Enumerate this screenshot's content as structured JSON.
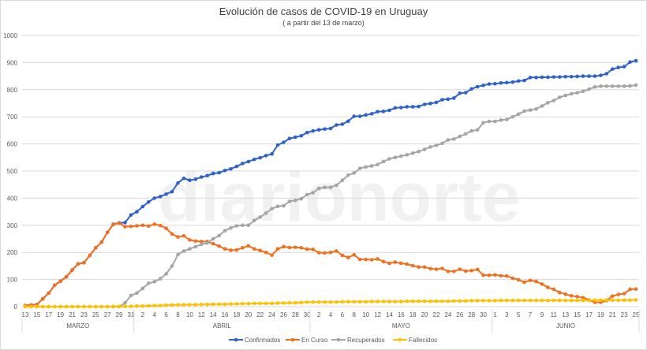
{
  "chart_data": {
    "type": "line",
    "title": "Evolución de casos de COVID-19 en Uruguay",
    "subtitle": "( a partir del 13 de marzo)",
    "watermark": "diarionorte",
    "ylim": [
      0,
      1000
    ],
    "yticks": [
      0,
      100,
      200,
      300,
      400,
      500,
      600,
      700,
      800,
      900,
      1000
    ],
    "grid": true,
    "legend_position": "bottom",
    "x_tick_labels": [
      "13",
      "15",
      "17",
      "19",
      "21",
      "23",
      "25",
      "27",
      "29",
      "31",
      "2",
      "4",
      "6",
      "8",
      "10",
      "12",
      "14",
      "16",
      "18",
      "20",
      "22",
      "24",
      "26",
      "28",
      "30",
      "2",
      "4",
      "6",
      "8",
      "10",
      "12",
      "14",
      "16",
      "18",
      "20",
      "22",
      "24",
      "26",
      "28",
      "30",
      "1",
      "3",
      "5",
      "7",
      "9",
      "11",
      "13",
      "15",
      "17",
      "19",
      "21",
      "23",
      "25"
    ],
    "months": [
      {
        "label": "MARZO",
        "days": 19
      },
      {
        "label": "ABRIL",
        "days": 30
      },
      {
        "label": "MAYO",
        "days": 31
      },
      {
        "label": "JUNIO",
        "days": 25
      }
    ],
    "series": [
      {
        "name": "Confirmados",
        "color": "#2e62c9",
        "values": [
          4,
          6,
          8,
          29,
          50,
          79,
          94,
          110,
          135,
          158,
          162,
          189,
          217,
          238,
          274,
          304,
          309,
          310,
          338,
          350,
          369,
          386,
          400,
          406,
          415,
          424,
          456,
          473,
          466,
          470,
          478,
          483,
          491,
          494,
          502,
          508,
          517,
          528,
          535,
          543,
          549,
          557,
          563,
          596,
          606,
          620,
          625,
          630,
          642,
          648,
          652,
          655,
          657,
          670,
          673,
          684,
          702,
          702,
          707,
          711,
          719,
          720,
          724,
          733,
          734,
          737,
          737,
          738,
          746,
          749,
          753,
          763,
          765,
          769,
          787,
          789,
          803,
          811,
          816,
          821,
          822,
          825,
          826,
          828,
          832,
          834,
          845,
          845,
          846,
          846,
          847,
          847,
          848,
          848,
          849,
          850,
          850,
          850,
          853,
          859,
          876,
          882,
          885,
          902,
          907
        ]
      },
      {
        "name": "En Curso",
        "color": "#f07020",
        "values": [
          4,
          6,
          8,
          29,
          50,
          79,
          94,
          110,
          135,
          158,
          162,
          189,
          217,
          238,
          274,
          303,
          308,
          295,
          296,
          298,
          300,
          297,
          304,
          299,
          289,
          268,
          257,
          261,
          246,
          242,
          240,
          240,
          232,
          223,
          213,
          208,
          209,
          217,
          224,
          213,
          207,
          200,
          190,
          213,
          221,
          218,
          219,
          217,
          212,
          211,
          199,
          198,
          200,
          205,
          189,
          181,
          191,
          174,
          174,
          173,
          176,
          166,
          160,
          164,
          160,
          157,
          151,
          146,
          146,
          140,
          138,
          141,
          130,
          130,
          138,
          131,
          133,
          137,
          116,
          116,
          117,
          114,
          113,
          105,
          99,
          90,
          97,
          93,
          83,
          71,
          64,
          52,
          46,
          40,
          37,
          33,
          25,
          16,
          16,
          22,
          39,
          45,
          48,
          64,
          65
        ]
      },
      {
        "name": "Recuperados",
        "color": "#a5a5a5",
        "values": [
          0,
          0,
          0,
          0,
          0,
          0,
          0,
          0,
          0,
          0,
          0,
          0,
          0,
          0,
          0,
          0,
          0,
          14,
          41,
          50,
          67,
          86,
          92,
          103,
          121,
          150,
          192,
          205,
          213,
          221,
          230,
          235,
          250,
          262,
          280,
          290,
          298,
          300,
          300,
          318,
          330,
          345,
          361,
          370,
          372,
          388,
          392,
          398,
          413,
          420,
          436,
          440,
          440,
          448,
          466,
          485,
          493,
          510,
          515,
          519,
          524,
          535,
          545,
          550,
          555,
          560,
          566,
          572,
          580,
          589,
          595,
          602,
          615,
          618,
          628,
          637,
          648,
          652,
          678,
          683,
          683,
          688,
          690,
          700,
          710,
          721,
          725,
          729,
          740,
          752,
          760,
          772,
          779,
          785,
          789,
          794,
          802,
          810,
          813,
          813,
          813,
          813,
          813,
          814,
          817
        ]
      },
      {
        "name": "Fallecidos",
        "color": "#ffc000",
        "values": [
          0,
          0,
          0,
          0,
          0,
          0,
          0,
          0,
          0,
          0,
          0,
          0,
          0,
          0,
          0,
          1,
          1,
          1,
          1,
          2,
          2,
          3,
          4,
          4,
          5,
          6,
          7,
          7,
          7,
          7,
          8,
          8,
          9,
          9,
          9,
          10,
          10,
          11,
          11,
          12,
          12,
          12,
          12,
          13,
          13,
          14,
          14,
          15,
          17,
          17,
          17,
          17,
          17,
          17,
          18,
          18,
          18,
          18,
          18,
          19,
          19,
          19,
          19,
          19,
          19,
          20,
          20,
          20,
          20,
          20,
          20,
          20,
          20,
          21,
          21,
          21,
          22,
          22,
          22,
          22,
          22,
          23,
          23,
          23,
          23,
          23,
          23,
          23,
          23,
          23,
          23,
          23,
          23,
          23,
          23,
          23,
          23,
          24,
          24,
          24,
          24,
          24,
          24,
          24,
          25
        ]
      }
    ]
  }
}
